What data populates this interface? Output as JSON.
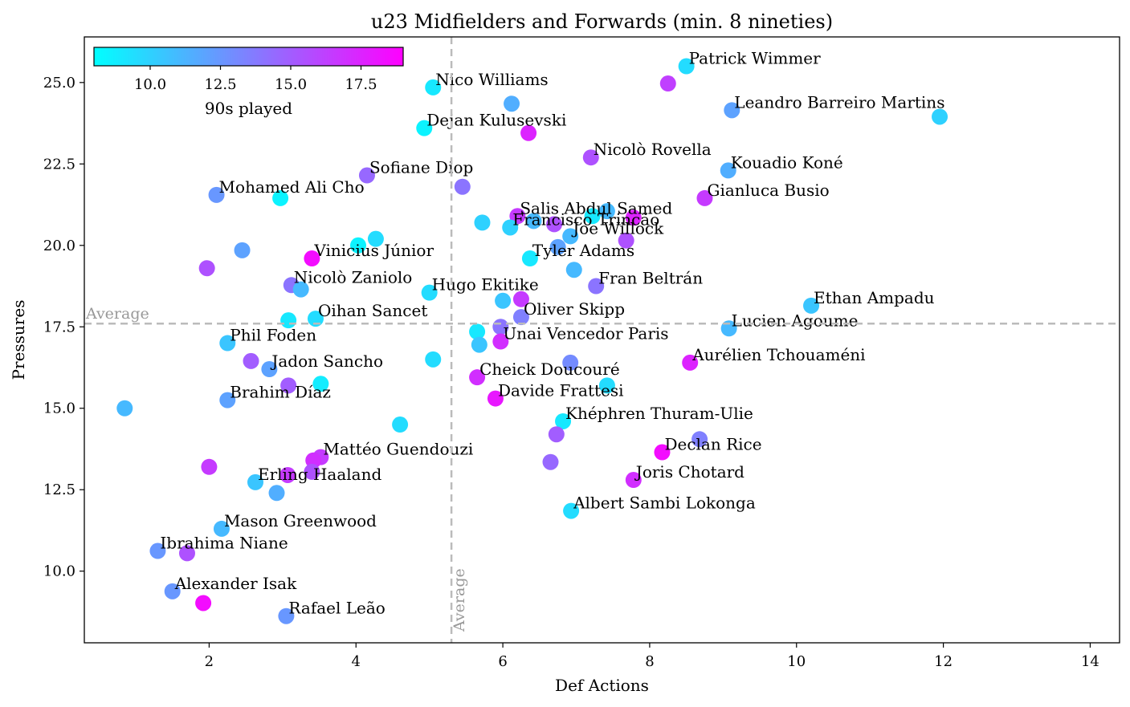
{
  "chart_data": {
    "type": "scatter",
    "title": "u23 Midfielders and Forwards (min. 8 nineties)",
    "xlabel": "Def Actions",
    "ylabel": "Pressures",
    "xlim": [
      0.3,
      14.4
    ],
    "ylim": [
      7.8,
      26.4
    ],
    "xticks": [
      2,
      4,
      6,
      8,
      10,
      12,
      14
    ],
    "yticks": [
      10.0,
      12.5,
      15.0,
      17.5,
      20.0,
      22.5,
      25.0
    ],
    "xticks_labels": [
      "2",
      "4",
      "6",
      "8",
      "10",
      "12",
      "14"
    ],
    "yticks_labels": [
      "10.0",
      "12.5",
      "15.0",
      "17.5",
      "20.0",
      "22.5",
      "25.0"
    ],
    "average_x": 5.3,
    "average_y": 17.6,
    "average_label": "Average",
    "grid": false,
    "colorbar": {
      "label": "90s played",
      "min": 8.0,
      "max": 19.0,
      "ticks": [
        10.0,
        12.5,
        15.0,
        17.5
      ],
      "ticks_labels": [
        "10.0",
        "12.5",
        "15.0",
        "17.5"
      ],
      "cmap": [
        "#00ffff",
        "#ff00ff"
      ],
      "position": "top-left"
    },
    "points": [
      {
        "x": 8.5,
        "y": 25.5,
        "c": 9.5,
        "label": "Patrick Wimmer"
      },
      {
        "x": 8.25,
        "y": 24.97,
        "c": 16.3,
        "label": ""
      },
      {
        "x": 5.05,
        "y": 24.85,
        "c": 9.0,
        "label": "Nico Williams"
      },
      {
        "x": 6.12,
        "y": 24.35,
        "c": 11.5,
        "label": ""
      },
      {
        "x": 9.12,
        "y": 24.15,
        "c": 12.0,
        "label": "Leandro Barreiro Martins"
      },
      {
        "x": 11.95,
        "y": 23.95,
        "c": 10.0,
        "label": ""
      },
      {
        "x": 4.93,
        "y": 23.6,
        "c": 8.5,
        "label": "Dejan Kulusevski"
      },
      {
        "x": 6.35,
        "y": 23.45,
        "c": 17.5,
        "label": ""
      },
      {
        "x": 7.2,
        "y": 22.7,
        "c": 15.5,
        "label": "Nicolò Rovella"
      },
      {
        "x": 9.07,
        "y": 22.3,
        "c": 11.5,
        "label": "Kouadio Koné"
      },
      {
        "x": 4.15,
        "y": 22.15,
        "c": 14.5,
        "label": "Sofiane Diop"
      },
      {
        "x": 5.45,
        "y": 21.8,
        "c": 14.0,
        "label": ""
      },
      {
        "x": 2.1,
        "y": 21.55,
        "c": 12.5,
        "label": "Mohamed Ali Cho"
      },
      {
        "x": 2.97,
        "y": 21.45,
        "c": 8.5,
        "label": ""
      },
      {
        "x": 8.75,
        "y": 21.45,
        "c": 16.5,
        "label": "Gianluca Busio"
      },
      {
        "x": 6.2,
        "y": 20.9,
        "c": 16.5,
        "label": "Salis Abdul Samed"
      },
      {
        "x": 7.22,
        "y": 20.9,
        "c": 9.0,
        "label": ""
      },
      {
        "x": 7.42,
        "y": 21.05,
        "c": 11.0,
        "label": ""
      },
      {
        "x": 7.78,
        "y": 20.85,
        "c": 17.5,
        "label": ""
      },
      {
        "x": 5.72,
        "y": 20.7,
        "c": 10.0,
        "label": ""
      },
      {
        "x": 6.42,
        "y": 20.75,
        "c": 11.0,
        "label": ""
      },
      {
        "x": 6.7,
        "y": 20.65,
        "c": 15.5,
        "label": ""
      },
      {
        "x": 6.1,
        "y": 20.55,
        "c": 10.0,
        "label": "Francisco Trincão"
      },
      {
        "x": 6.92,
        "y": 20.28,
        "c": 11.0,
        "label": "Joe Willock"
      },
      {
        "x": 7.68,
        "y": 20.15,
        "c": 15.5,
        "label": ""
      },
      {
        "x": 4.27,
        "y": 20.2,
        "c": 9.5,
        "label": ""
      },
      {
        "x": 4.03,
        "y": 20.0,
        "c": 8.5,
        "label": ""
      },
      {
        "x": 2.45,
        "y": 19.85,
        "c": 12.0,
        "label": ""
      },
      {
        "x": 6.75,
        "y": 19.95,
        "c": 12.0,
        "label": ""
      },
      {
        "x": 3.4,
        "y": 19.6,
        "c": 18.5,
        "label": "Vinicius Júnior"
      },
      {
        "x": 6.37,
        "y": 19.6,
        "c": 9.0,
        "label": "Tyler Adams"
      },
      {
        "x": 1.97,
        "y": 19.3,
        "c": 15.5,
        "label": ""
      },
      {
        "x": 6.97,
        "y": 19.25,
        "c": 11.0,
        "label": ""
      },
      {
        "x": 3.12,
        "y": 18.78,
        "c": 14.0,
        "label": "Nicolò Zaniolo"
      },
      {
        "x": 3.25,
        "y": 18.65,
        "c": 11.0,
        "label": ""
      },
      {
        "x": 7.27,
        "y": 18.75,
        "c": 14.0,
        "label": "Fran Beltrán"
      },
      {
        "x": 5.0,
        "y": 18.55,
        "c": 9.5,
        "label": "Hugo Ekitike"
      },
      {
        "x": 6.0,
        "y": 18.3,
        "c": 10.5,
        "label": ""
      },
      {
        "x": 6.25,
        "y": 18.35,
        "c": 16.5,
        "label": ""
      },
      {
        "x": 10.2,
        "y": 18.15,
        "c": 10.5,
        "label": "Ethan Ampadu"
      },
      {
        "x": 6.25,
        "y": 17.8,
        "c": 13.5,
        "label": "Oliver Skipp"
      },
      {
        "x": 3.45,
        "y": 17.75,
        "c": 9.5,
        "label": "Oihan Sancet"
      },
      {
        "x": 3.08,
        "y": 17.7,
        "c": 9.0,
        "label": ""
      },
      {
        "x": 5.97,
        "y": 17.5,
        "c": 14.0,
        "label": ""
      },
      {
        "x": 9.08,
        "y": 17.45,
        "c": 11.0,
        "label": "Lucien Agoume"
      },
      {
        "x": 5.65,
        "y": 17.35,
        "c": 9.0,
        "label": ""
      },
      {
        "x": 5.97,
        "y": 17.05,
        "c": 17.0,
        "label": "Unai Vencedor Paris"
      },
      {
        "x": 5.68,
        "y": 16.95,
        "c": 10.5,
        "label": ""
      },
      {
        "x": 2.25,
        "y": 17.0,
        "c": 10.5,
        "label": "Phil Foden"
      },
      {
        "x": 5.05,
        "y": 16.5,
        "c": 9.5,
        "label": ""
      },
      {
        "x": 2.57,
        "y": 16.45,
        "c": 15.0,
        "label": ""
      },
      {
        "x": 6.92,
        "y": 16.4,
        "c": 13.0,
        "label": ""
      },
      {
        "x": 8.55,
        "y": 16.4,
        "c": 17.5,
        "label": "Aurélien Tchouaméni"
      },
      {
        "x": 2.82,
        "y": 16.2,
        "c": 12.0,
        "label": "Jadon Sancho"
      },
      {
        "x": 5.65,
        "y": 15.95,
        "c": 17.0,
        "label": "Cheick Doucouré"
      },
      {
        "x": 3.52,
        "y": 15.75,
        "c": 8.8,
        "label": ""
      },
      {
        "x": 3.08,
        "y": 15.7,
        "c": 15.0,
        "label": ""
      },
      {
        "x": 7.42,
        "y": 15.7,
        "c": 9.5,
        "label": ""
      },
      {
        "x": 5.9,
        "y": 15.3,
        "c": 18.0,
        "label": "Davide Frattesi"
      },
      {
        "x": 2.25,
        "y": 15.25,
        "c": 12.0,
        "label": "Brahim Díaz"
      },
      {
        "x": 0.85,
        "y": 15.0,
        "c": 11.0,
        "label": ""
      },
      {
        "x": 4.6,
        "y": 14.5,
        "c": 9.5,
        "label": ""
      },
      {
        "x": 6.82,
        "y": 14.6,
        "c": 9.0,
        "label": "Khéphren Thuram-Ulie"
      },
      {
        "x": 8.68,
        "y": 14.05,
        "c": 13.5,
        "label": ""
      },
      {
        "x": 6.73,
        "y": 14.2,
        "c": 15.0,
        "label": ""
      },
      {
        "x": 8.17,
        "y": 13.65,
        "c": 18.5,
        "label": "Declan Rice"
      },
      {
        "x": 3.52,
        "y": 13.5,
        "c": 16.5,
        "label": "Mattéo Guendouzi"
      },
      {
        "x": 3.42,
        "y": 13.4,
        "c": 17.0,
        "label": ""
      },
      {
        "x": 6.65,
        "y": 13.35,
        "c": 14.5,
        "label": ""
      },
      {
        "x": 2.0,
        "y": 13.2,
        "c": 16.5,
        "label": ""
      },
      {
        "x": 3.4,
        "y": 13.05,
        "c": 15.5,
        "label": ""
      },
      {
        "x": 3.07,
        "y": 12.95,
        "c": 16.5,
        "label": ""
      },
      {
        "x": 7.78,
        "y": 12.8,
        "c": 17.0,
        "label": "Joris Chotard"
      },
      {
        "x": 2.63,
        "y": 12.73,
        "c": 10.5,
        "label": "Erling Haaland"
      },
      {
        "x": 2.92,
        "y": 12.4,
        "c": 11.5,
        "label": ""
      },
      {
        "x": 6.93,
        "y": 11.85,
        "c": 9.5,
        "label": "Albert Sambi Lokonga"
      },
      {
        "x": 2.17,
        "y": 11.3,
        "c": 11.0,
        "label": "Mason Greenwood"
      },
      {
        "x": 1.3,
        "y": 10.62,
        "c": 12.5,
        "label": "Ibrahima Niane"
      },
      {
        "x": 1.7,
        "y": 10.55,
        "c": 15.5,
        "label": ""
      },
      {
        "x": 1.5,
        "y": 9.38,
        "c": 12.5,
        "label": "Alexander Isak"
      },
      {
        "x": 1.92,
        "y": 9.02,
        "c": 18.5,
        "label": ""
      },
      {
        "x": 3.05,
        "y": 8.62,
        "c": 12.5,
        "label": "Rafael Leão"
      }
    ]
  }
}
